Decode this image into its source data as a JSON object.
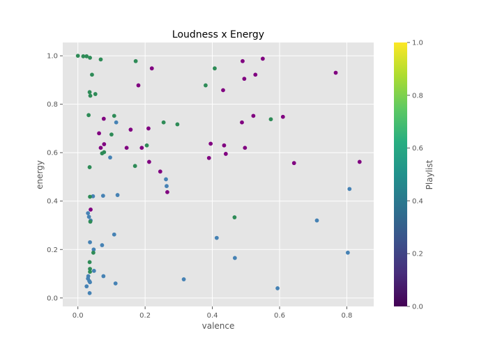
{
  "chart_data": {
    "type": "scatter",
    "title": "Loudness x Energy",
    "xlabel": "valence",
    "ylabel": "energy",
    "xlim": [
      -0.045,
      0.88
    ],
    "ylim": [
      -0.035,
      1.055
    ],
    "xticks": [
      "0.0",
      "0.2",
      "0.4",
      "0.6",
      "0.8"
    ],
    "xtick_values": [
      0.0,
      0.2,
      0.4,
      0.6,
      0.8
    ],
    "yticks": [
      "0.0",
      "0.2",
      "0.4",
      "0.6",
      "0.8",
      "1.0"
    ],
    "ytick_values": [
      0.0,
      0.2,
      0.4,
      0.6,
      0.8,
      1.0
    ],
    "grid": true,
    "colorbar": {
      "label": "Playlist",
      "ticks": [
        "0.0",
        "0.2",
        "0.4",
        "0.6",
        "0.8",
        "1.0"
      ],
      "tick_values": [
        0.0,
        0.2,
        0.4,
        0.6,
        0.8,
        1.0
      ],
      "colormap": "viridis"
    },
    "colors": {
      "purple": "#800080",
      "steelblue": "#4682b4",
      "seagreen": "#2e8b57"
    },
    "series": [
      {
        "color": "#800080",
        "points": [
          [
            0.038,
            0.365
          ],
          [
            0.063,
            0.68
          ],
          [
            0.068,
            0.62
          ],
          [
            0.077,
            0.74
          ],
          [
            0.078,
            0.635
          ],
          [
            0.145,
            0.62
          ],
          [
            0.157,
            0.695
          ],
          [
            0.18,
            0.878
          ],
          [
            0.19,
            0.62
          ],
          [
            0.21,
            0.7
          ],
          [
            0.212,
            0.562
          ],
          [
            0.22,
            0.948
          ],
          [
            0.245,
            0.522
          ],
          [
            0.266,
            0.437
          ],
          [
            0.39,
            0.578
          ],
          [
            0.395,
            0.637
          ],
          [
            0.432,
            0.858
          ],
          [
            0.435,
            0.63
          ],
          [
            0.44,
            0.595
          ],
          [
            0.488,
            0.725
          ],
          [
            0.49,
            0.978
          ],
          [
            0.495,
            0.905
          ],
          [
            0.497,
            0.62
          ],
          [
            0.522,
            0.752
          ],
          [
            0.528,
            0.922
          ],
          [
            0.55,
            0.988
          ],
          [
            0.61,
            0.748
          ],
          [
            0.643,
            0.557
          ],
          [
            0.767,
            0.93
          ],
          [
            0.838,
            0.562
          ]
        ]
      },
      {
        "color": "#4682b4",
        "points": [
          [
            0.026,
            0.048
          ],
          [
            0.03,
            0.08
          ],
          [
            0.03,
            0.35
          ],
          [
            0.031,
            0.09
          ],
          [
            0.033,
            0.335
          ],
          [
            0.034,
            0.07
          ],
          [
            0.035,
            0.02
          ],
          [
            0.036,
            0.065
          ],
          [
            0.036,
            0.23
          ],
          [
            0.038,
            0.32
          ],
          [
            0.045,
            0.42
          ],
          [
            0.047,
            0.2
          ],
          [
            0.048,
            0.112
          ],
          [
            0.075,
            0.422
          ],
          [
            0.072,
            0.218
          ],
          [
            0.076,
            0.09
          ],
          [
            0.096,
            0.58
          ],
          [
            0.108,
            0.262
          ],
          [
            0.112,
            0.06
          ],
          [
            0.118,
            0.425
          ],
          [
            0.262,
            0.49
          ],
          [
            0.264,
            0.462
          ],
          [
            0.315,
            0.077
          ],
          [
            0.413,
            0.248
          ],
          [
            0.467,
            0.165
          ],
          [
            0.594,
            0.04
          ],
          [
            0.711,
            0.32
          ],
          [
            0.803,
            0.187
          ],
          [
            0.808,
            0.45
          ],
          [
            0.114,
            0.725
          ]
        ]
      },
      {
        "color": "#2e8b57",
        "points": [
          [
            0.0,
            1.0
          ],
          [
            0.016,
            0.998
          ],
          [
            0.026,
            0.998
          ],
          [
            0.036,
            0.992
          ],
          [
            0.042,
            0.922
          ],
          [
            0.035,
            0.85
          ],
          [
            0.037,
            0.835
          ],
          [
            0.052,
            0.842
          ],
          [
            0.068,
            0.985
          ],
          [
            0.032,
            0.755
          ],
          [
            0.035,
            0.54
          ],
          [
            0.036,
            0.418
          ],
          [
            0.037,
            0.315
          ],
          [
            0.035,
            0.148
          ],
          [
            0.036,
            0.12
          ],
          [
            0.036,
            0.108
          ],
          [
            0.046,
            0.187
          ],
          [
            0.072,
            0.597
          ],
          [
            0.078,
            0.602
          ],
          [
            0.1,
            0.675
          ],
          [
            0.108,
            0.752
          ],
          [
            0.172,
            0.978
          ],
          [
            0.17,
            0.545
          ],
          [
            0.205,
            0.63
          ],
          [
            0.255,
            0.725
          ],
          [
            0.296,
            0.717
          ],
          [
            0.38,
            0.878
          ],
          [
            0.407,
            0.948
          ],
          [
            0.466,
            0.333
          ],
          [
            0.574,
            0.738
          ]
        ]
      }
    ]
  }
}
